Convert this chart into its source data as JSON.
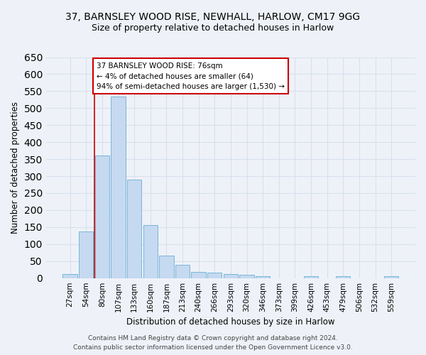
{
  "title_line1": "37, BARNSLEY WOOD RISE, NEWHALL, HARLOW, CM17 9GG",
  "title_line2": "Size of property relative to detached houses in Harlow",
  "xlabel": "Distribution of detached houses by size in Harlow",
  "ylabel": "Number of detached properties",
  "bar_color": "#c5d9f0",
  "bar_edge_color": "#6aaed6",
  "categories": [
    "27sqm",
    "54sqm",
    "80sqm",
    "107sqm",
    "133sqm",
    "160sqm",
    "187sqm",
    "213sqm",
    "240sqm",
    "266sqm",
    "293sqm",
    "320sqm",
    "346sqm",
    "373sqm",
    "399sqm",
    "426sqm",
    "453sqm",
    "479sqm",
    "506sqm",
    "532sqm",
    "559sqm"
  ],
  "values": [
    12,
    137,
    360,
    535,
    290,
    157,
    67,
    38,
    18,
    15,
    12,
    9,
    5,
    0,
    0,
    5,
    0,
    5,
    0,
    0,
    5
  ],
  "ylim": [
    0,
    650
  ],
  "yticks": [
    0,
    50,
    100,
    150,
    200,
    250,
    300,
    350,
    400,
    450,
    500,
    550,
    600,
    650
  ],
  "property_line_x": 1.5,
  "annotation_text": "37 BARNSLEY WOOD RISE: 76sqm\n← 4% of detached houses are smaller (64)\n94% of semi-detached houses are larger (1,530) →",
  "annotation_box_color": "#ffffff",
  "annotation_box_edge_color": "#cc0000",
  "property_line_color": "#cc0000",
  "footer_line1": "Contains HM Land Registry data © Crown copyright and database right 2024.",
  "footer_line2": "Contains public sector information licensed under the Open Government Licence v3.0.",
  "background_color": "#eef2f8",
  "grid_color": "#d8e0ee",
  "title_fontsize": 10,
  "subtitle_fontsize": 9,
  "axis_label_fontsize": 8.5,
  "tick_fontsize": 7.5,
  "annotation_fontsize": 7.5,
  "footer_fontsize": 6.5
}
